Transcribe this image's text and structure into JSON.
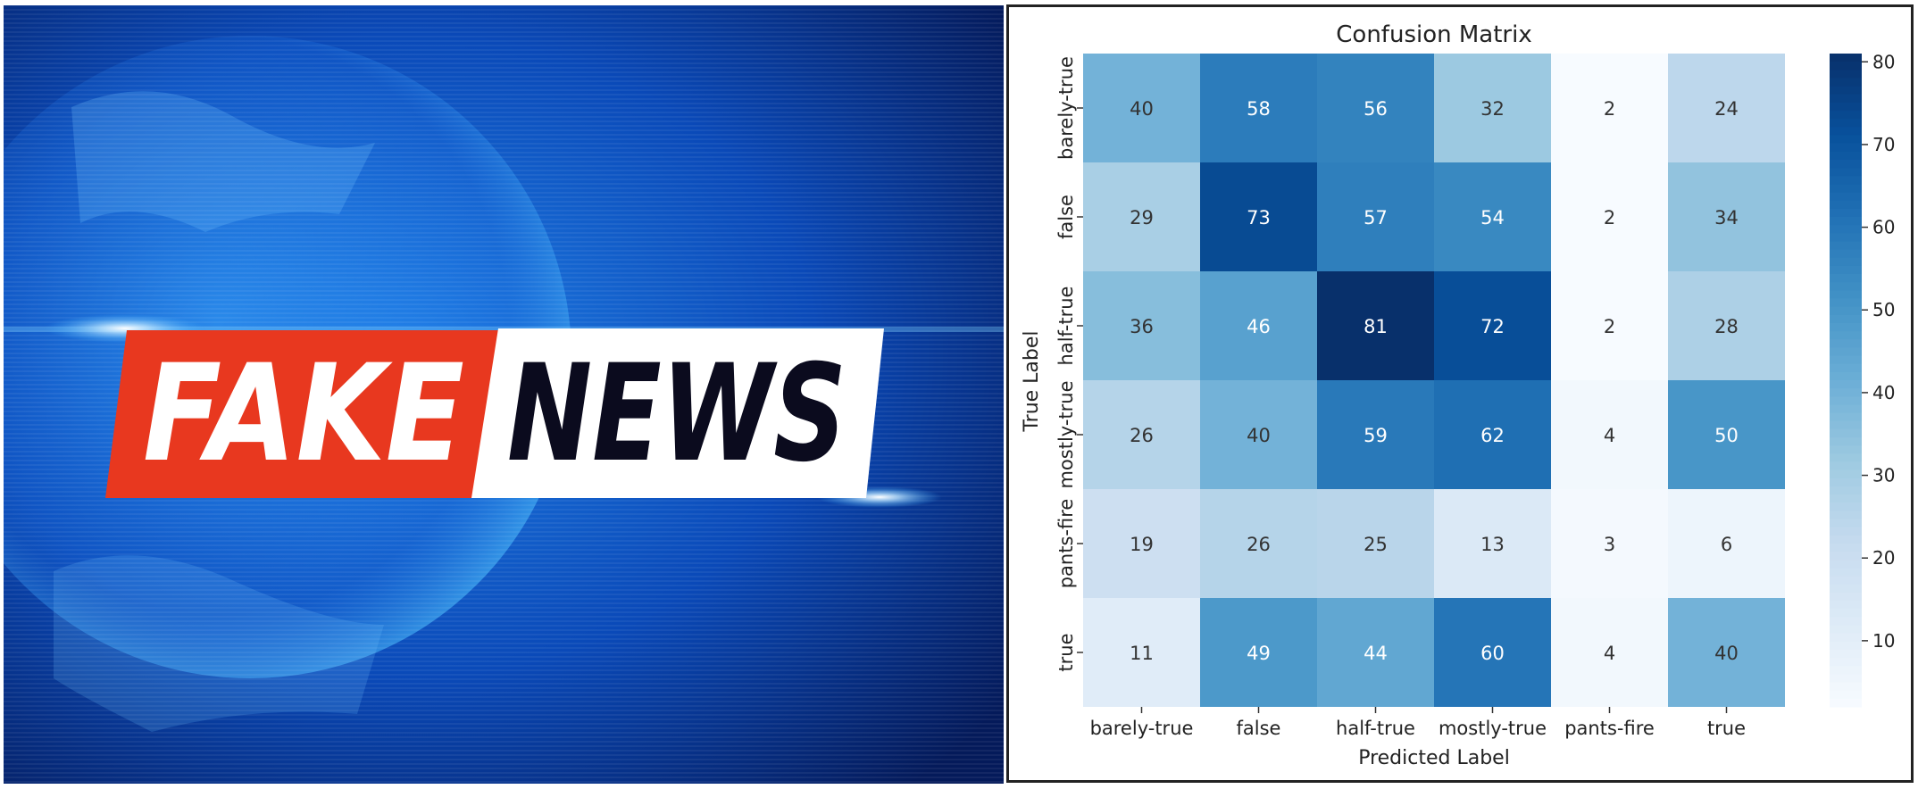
{
  "banner": {
    "left_word": "FAKE",
    "right_word": "NEWS",
    "colors": {
      "background": "#0a3d9e",
      "glow": "#3fb2ff",
      "red_band": "#e8381f",
      "white_band": "#ffffff",
      "text_dark": "#0b0b1e"
    }
  },
  "chart_data": {
    "type": "heatmap",
    "title": "Confusion Matrix",
    "xlabel": "Predicted Label",
    "ylabel": "True Label",
    "x_categories": [
      "barely-true",
      "false",
      "half-true",
      "mostly-true",
      "pants-fire",
      "true"
    ],
    "y_categories": [
      "barely-true",
      "false",
      "half-true",
      "mostly-true",
      "pants-fire",
      "true"
    ],
    "values": [
      [
        40,
        58,
        56,
        32,
        2,
        24
      ],
      [
        29,
        73,
        57,
        54,
        2,
        34
      ],
      [
        36,
        46,
        81,
        72,
        2,
        28
      ],
      [
        26,
        40,
        59,
        62,
        4,
        50
      ],
      [
        19,
        26,
        25,
        13,
        3,
        6
      ],
      [
        11,
        49,
        44,
        60,
        4,
        40
      ]
    ],
    "colorbar": {
      "min": 2,
      "max": 81,
      "ticks": [
        10,
        20,
        30,
        40,
        50,
        60,
        70,
        80
      ],
      "colormap": "Blues"
    },
    "grid": false
  }
}
